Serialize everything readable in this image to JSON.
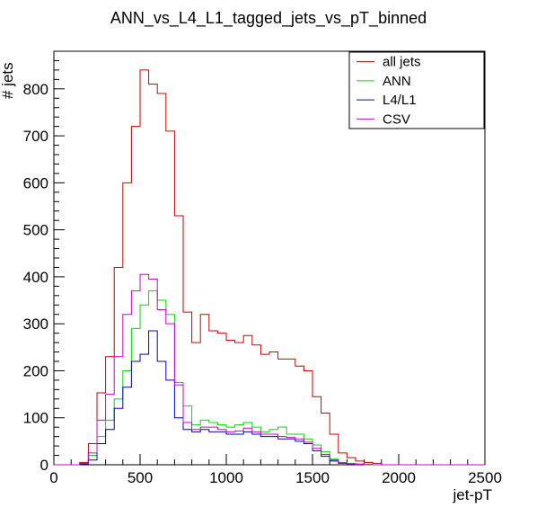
{
  "chart_data": {
    "type": "histogram",
    "title": "ANN_vs_L4_L1_tagged_jets_vs_pT_binned",
    "xlabel": "jet-pT",
    "ylabel": "# jets",
    "xlim": [
      0,
      2500
    ],
    "ylim": [
      0,
      880
    ],
    "x_ticks": [
      0,
      500,
      1000,
      1500,
      2000,
      2500
    ],
    "y_ticks": [
      0,
      100,
      200,
      300,
      400,
      500,
      600,
      700,
      800
    ],
    "grid": false,
    "legend_position": "top-right",
    "bin_width": 50,
    "bin_edges_start": 0,
    "series": [
      {
        "name": "all jets",
        "color": "#cc0000",
        "values": [
          0,
          0,
          0,
          5,
          45,
          153,
          230,
          420,
          600,
          720,
          840,
          810,
          790,
          710,
          530,
          325,
          260,
          320,
          285,
          280,
          265,
          260,
          275,
          255,
          235,
          240,
          225,
          225,
          210,
          200,
          145,
          110,
          65,
          25,
          15,
          8,
          5,
          3,
          0,
          0,
          0,
          0,
          0,
          0,
          0,
          0,
          0,
          0,
          0,
          0
        ]
      },
      {
        "name": "ANN",
        "color": "#00dd00",
        "values": [
          0,
          0,
          0,
          3,
          20,
          60,
          95,
          140,
          200,
          290,
          340,
          370,
          350,
          320,
          175,
          125,
          85,
          95,
          90,
          85,
          80,
          85,
          90,
          80,
          70,
          75,
          80,
          65,
          65,
          55,
          42,
          28,
          12,
          5,
          3,
          2,
          1,
          0,
          0,
          0,
          0,
          0,
          0,
          0,
          0,
          0,
          0,
          0,
          0,
          0
        ]
      },
      {
        "name": "L4/L1",
        "color": "#0000cc",
        "values": [
          0,
          0,
          0,
          2,
          10,
          45,
          75,
          120,
          165,
          220,
          235,
          285,
          220,
          180,
          100,
          75,
          70,
          75,
          70,
          70,
          65,
          65,
          70,
          65,
          60,
          60,
          55,
          55,
          50,
          45,
          30,
          18,
          8,
          3,
          2,
          1,
          0,
          0,
          0,
          0,
          0,
          0,
          0,
          0,
          0,
          0,
          0,
          0,
          0,
          0
        ]
      },
      {
        "name": "CSV",
        "color": "#cc00cc",
        "values": [
          0,
          0,
          0,
          3,
          25,
          95,
          150,
          230,
          320,
          370,
          405,
          395,
          330,
          300,
          170,
          90,
          75,
          80,
          80,
          75,
          70,
          72,
          78,
          70,
          65,
          65,
          60,
          58,
          55,
          48,
          35,
          22,
          10,
          4,
          2,
          1,
          0,
          0,
          0,
          0,
          0,
          0,
          0,
          0,
          0,
          0,
          0,
          0,
          0,
          0
        ]
      }
    ]
  }
}
